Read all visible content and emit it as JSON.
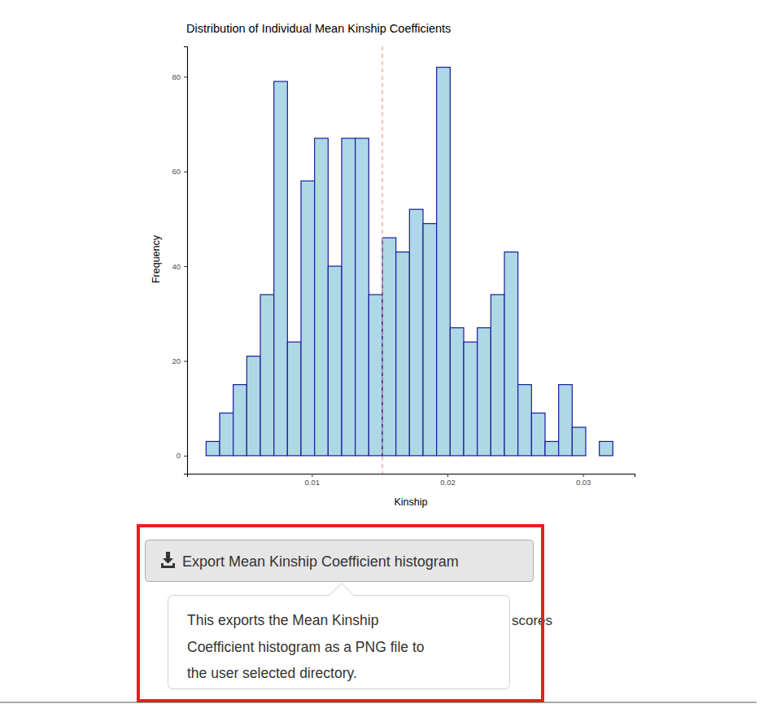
{
  "chart_data": {
    "type": "histogram",
    "title": "Distribution of Individual Mean Kinship Coefficients",
    "x_label": "Kinship",
    "y_label": "Frequency",
    "bins": [
      0.0022,
      0.0032,
      0.0042,
      0.0052,
      0.0062,
      0.0072,
      0.0082,
      0.0092,
      0.0102,
      0.0112,
      0.0122,
      0.0132,
      0.0142,
      0.0152,
      0.0162,
      0.0172,
      0.0182,
      0.0192,
      0.0202,
      0.0212,
      0.0222,
      0.0232,
      0.0242,
      0.0252,
      0.0262,
      0.0272,
      0.0282,
      0.0292,
      0.0302,
      0.0312,
      0.0322
    ],
    "values": [
      3,
      9,
      15,
      21,
      34,
      79,
      24,
      58,
      67,
      40,
      67,
      67,
      34,
      46,
      43,
      52,
      49,
      82,
      27,
      24,
      27,
      34,
      43,
      15,
      9,
      3,
      15,
      6,
      0,
      3
    ],
    "color": "#add8e6",
    "xlim": [
      0.0008,
      0.0338
    ],
    "xticks": [
      0.01,
      0.02,
      0.03
    ],
    "ylim": [
      -3.8,
      86.4
    ],
    "yticks": [
      0,
      20,
      40,
      60,
      80
    ],
    "grid": false,
    "reference_line": {
      "value": 0.0152,
      "line_style": "dashed",
      "color": "#f4a3a3"
    }
  },
  "ui": {
    "button": "Export Mean Kinship Coefficient histogram",
    "tooltip": [
      "This exports the Mean Kinship",
      "Coefficient histogram as a PNG file to",
      "the user selected directory."
    ],
    "hidden_text": "scores"
  }
}
